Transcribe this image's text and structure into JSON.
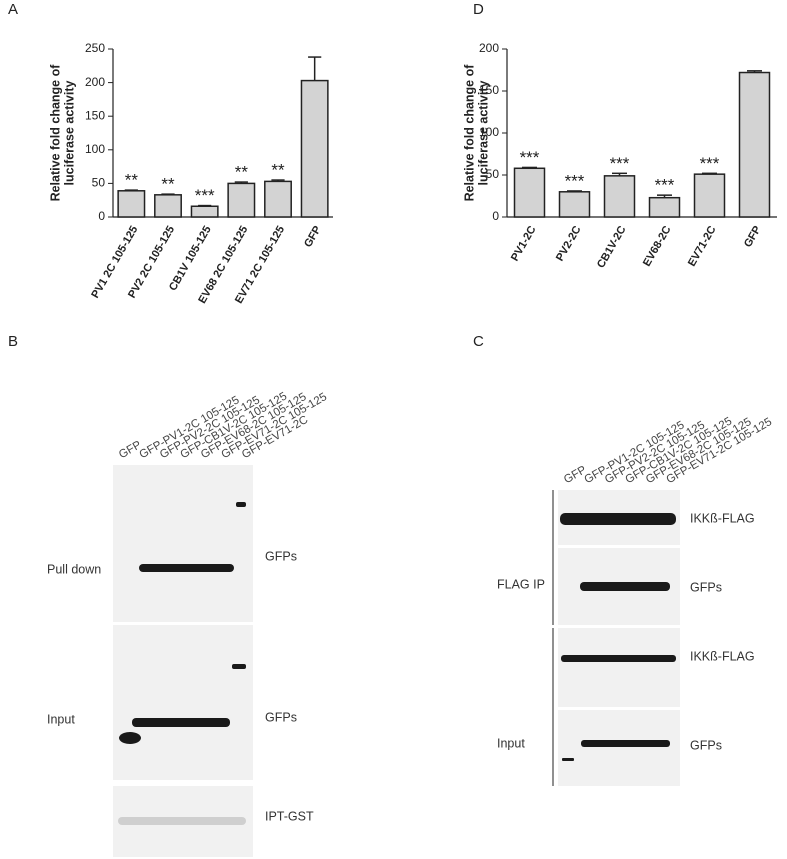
{
  "chart_data": [
    {
      "type": "bar",
      "panel": "A",
      "ylabel": [
        "Relative fold change of",
        "luciferase activity"
      ],
      "categories": [
        "PV1 2C 105-125",
        "PV2 2C 105-125",
        "CB1V 105-125",
        "EV68 2C 105-125",
        "EV71 2C 105-125",
        "GFP"
      ],
      "values": [
        39,
        33,
        16,
        50,
        53,
        203
      ],
      "errors": [
        1,
        1,
        1,
        2,
        2,
        35
      ],
      "annotations": [
        "**",
        "**",
        "***",
        "**",
        "**",
        null
      ],
      "color": "#d3d3d3",
      "ylim": [
        0,
        250
      ],
      "yticks": [
        0,
        50,
        100,
        150,
        200,
        250
      ]
    },
    {
      "type": "bar",
      "panel": "D",
      "ylabel": [
        "Relative fold change of",
        "luciferase activity"
      ],
      "categories": [
        "PV1-2C",
        "PV2-2C",
        "CB1V-2C",
        "EV68-2C",
        "EV71-2C",
        "GFP"
      ],
      "values": [
        58,
        30,
        49,
        23,
        51,
        172
      ],
      "errors": [
        1,
        1,
        3,
        3,
        1,
        2
      ],
      "annotations": [
        "***",
        "***",
        "***",
        "***",
        "***",
        null
      ],
      "color": "#d3d3d3",
      "ylim": [
        0,
        200
      ],
      "yticks": [
        0,
        50,
        100,
        150,
        200
      ]
    }
  ],
  "blots": [
    {
      "panel": "B",
      "lanes": [
        "GFP",
        "GFP-PV1-2C 105-125",
        "GFP-PV2-2C 105-125",
        "GFP-CB1V-2C 105-125",
        "GFP-EV68-2C 105-125",
        "GFP-EV71-2C 105-125",
        "GFP-EV71-2C"
      ],
      "groups": [
        "Pull down",
        "Input"
      ],
      "rows": [
        "GFPs",
        "GFPs",
        "IPT-GST"
      ]
    },
    {
      "panel": "C",
      "lanes": [
        "GFP",
        "GFP-PV1-2C 105-125",
        "GFP-PV2-2C 105-125",
        "GFP-CB1V-2C 105-125",
        "GFP-EV68-2C 105-125",
        "GFP-EV71-2C 105-125"
      ],
      "groups": [
        "FLAG IP",
        "Input"
      ],
      "rows": [
        "IKKß-FLAG",
        "GFPs",
        "IKKß-FLAG",
        "GFPs"
      ]
    }
  ]
}
